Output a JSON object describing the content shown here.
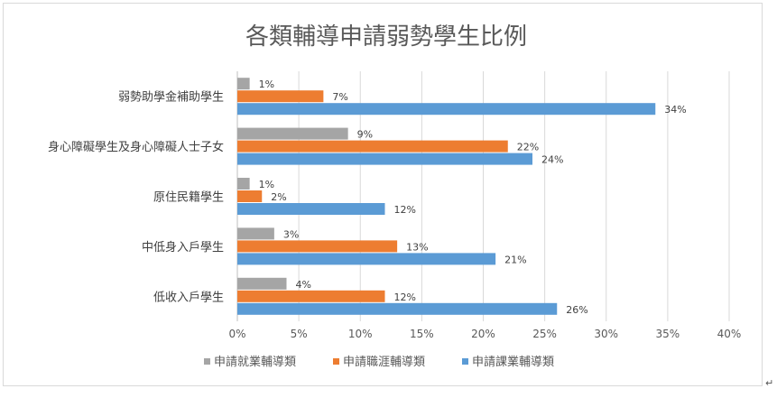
{
  "chart_data": {
    "type": "bar",
    "orientation": "horizontal",
    "title": "各類輔導申請弱勢學生比例",
    "categories": [
      "低收入戶學生",
      "中低身入戶學生",
      "原住民籍學生",
      "身心障礙學生及身心障礙人士子女",
      "弱勢助學金補助學生"
    ],
    "series": [
      {
        "name": "申請就業輔導類",
        "color": "#a5a5a5",
        "values": [
          4,
          3,
          1,
          9,
          1
        ],
        "labels": [
          "4%",
          "3%",
          "1%",
          "9%",
          "1%"
        ]
      },
      {
        "name": "申請職涯輔導類",
        "color": "#ed7d31",
        "values": [
          12,
          13,
          2,
          22,
          7
        ],
        "labels": [
          "12%",
          "13%",
          "2%",
          "22%",
          "7%"
        ]
      },
      {
        "name": "申請課業輔導類",
        "color": "#5b9bd5",
        "values": [
          26,
          21,
          12,
          24,
          34
        ],
        "labels": [
          "26%",
          "21%",
          "12%",
          "24%",
          "34%"
        ]
      }
    ],
    "xlim": [
      0,
      40
    ],
    "xticks": [
      "0%",
      "5%",
      "10%",
      "15%",
      "20%",
      "25%",
      "30%",
      "35%",
      "40%"
    ],
    "xgrid": true,
    "legend": "bottom",
    "legend_order": [
      "申請就業輔導類",
      "申請職涯輔導類",
      "申請課業輔導類"
    ]
  },
  "return_mark": "↵"
}
